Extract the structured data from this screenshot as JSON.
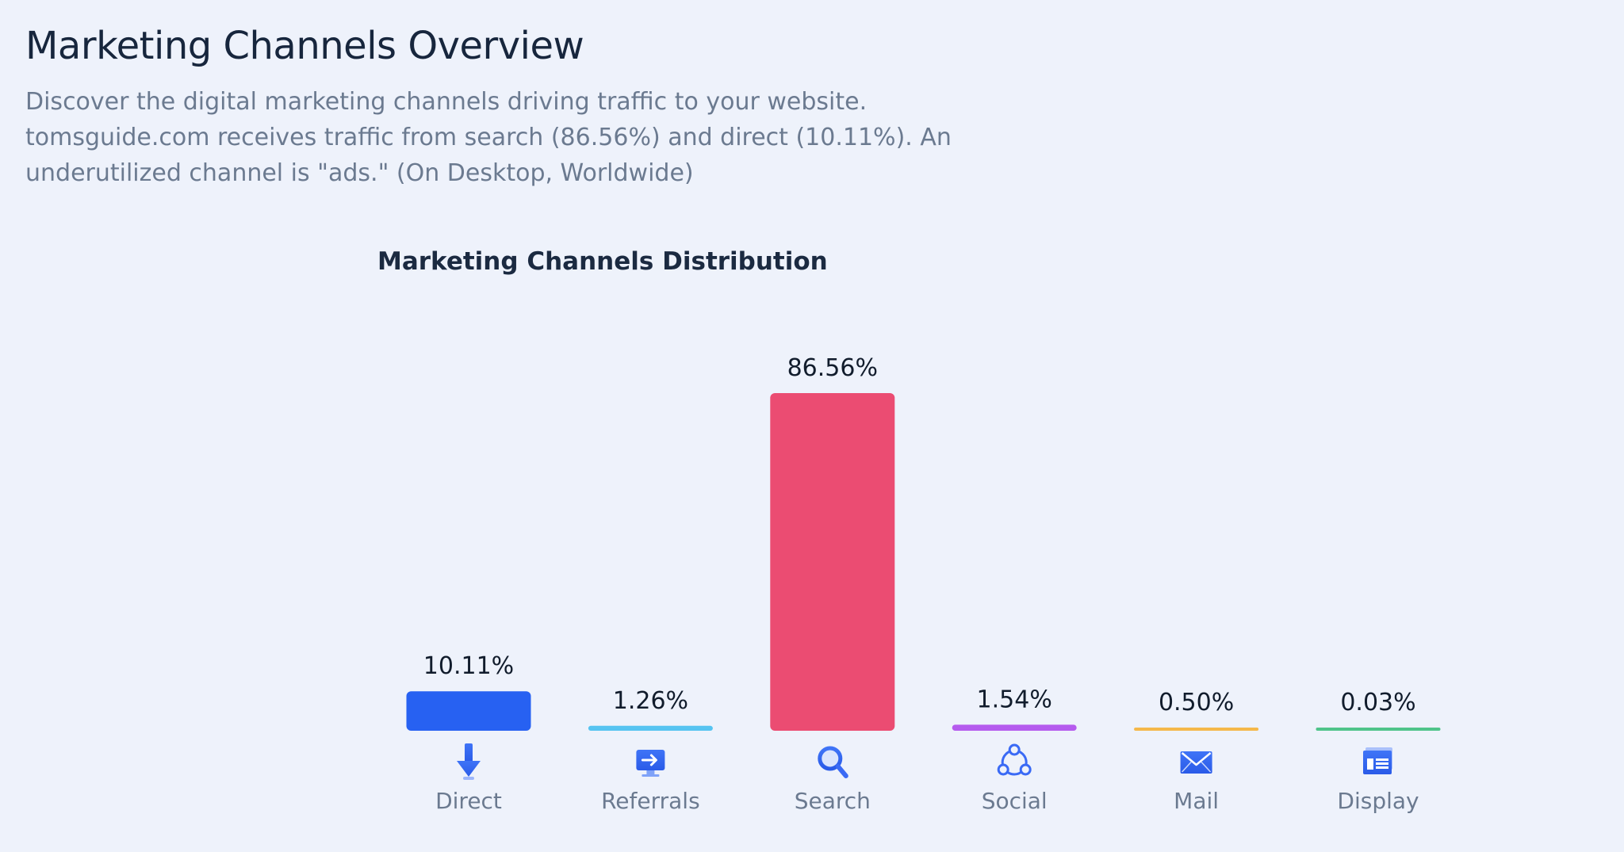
{
  "header": {
    "title": "Marketing Channels Overview",
    "description_lines": [
      "Discover the digital marketing channels driving traffic to your website.",
      "tomsguide.com receives traffic from search (86.56%) and direct (10.11%). An",
      "underutilized channel is \"ads.\" (On Desktop, Worldwide)"
    ]
  },
  "chart_data": {
    "type": "bar",
    "title": "Marketing Channels Distribution",
    "categories": [
      "Direct",
      "Referrals",
      "Search",
      "Social",
      "Mail",
      "Display"
    ],
    "values": [
      10.11,
      1.26,
      86.56,
      1.54,
      0.5,
      0.03
    ],
    "value_labels": [
      "10.11%",
      "1.26%",
      "86.56%",
      "1.54%",
      "0.50%",
      "0.03%"
    ],
    "icons": [
      "direct-arrow-icon",
      "referrals-screen-icon",
      "search-magnifier-icon",
      "social-network-icon",
      "mail-envelope-icon",
      "display-window-icon"
    ],
    "colors": [
      "#2761f2",
      "#56c4f1",
      "#eb4c72",
      "#b55bee",
      "#f5b84a",
      "#4fc48a"
    ],
    "icon_color": "#3a6af5",
    "ylim": [
      0,
      86.56
    ],
    "grid": false,
    "legend": "none"
  }
}
